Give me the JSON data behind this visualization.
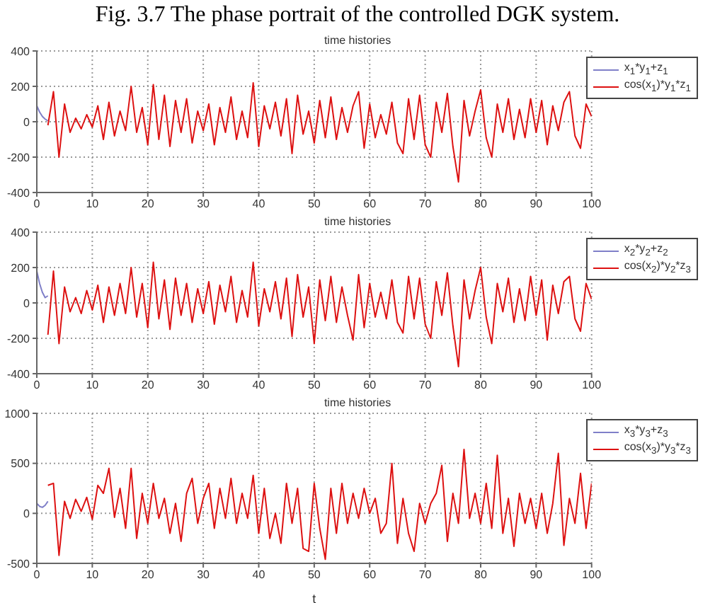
{
  "chart_data": [
    {
      "type": "line",
      "title": "time histories",
      "annotations": [
        "Fig. 3.7 The phase portrait of the controlled DGK system."
      ],
      "xlim": [
        0,
        100
      ],
      "xticks": [
        0,
        10,
        20,
        30,
        40,
        50,
        60,
        70,
        80,
        90,
        100
      ],
      "ylim": [
        -400,
        400
      ],
      "yticks": [
        -400,
        -200,
        0,
        200,
        400
      ],
      "grid": true,
      "legend": "top right",
      "marker": "none",
      "line_style": "solid",
      "series": [
        {
          "name": "x$_{1}$*y$_{1}$+z$_{1}$",
          "color": "#7f7fc8",
          "x": [
            0,
            0.5,
            1,
            1.5,
            2
          ],
          "values": [
            90,
            55,
            30,
            15,
            5
          ]
        },
        {
          "name": "cos(x$_{1}$)*y$_{1}$*z$_{1}$",
          "color": "#dd1111",
          "x": [
            2,
            3,
            4,
            5,
            6,
            7,
            8,
            9,
            10,
            11,
            12,
            13,
            14,
            15,
            16,
            17,
            18,
            19,
            20,
            21,
            22,
            23,
            24,
            25,
            26,
            27,
            28,
            29,
            30,
            31,
            32,
            33,
            34,
            35,
            36,
            37,
            38,
            39,
            40,
            41,
            42,
            43,
            44,
            45,
            46,
            47,
            48,
            49,
            50,
            51,
            52,
            53,
            54,
            55,
            56,
            57,
            58,
            59,
            60,
            61,
            62,
            63,
            64,
            65,
            66,
            67,
            68,
            69,
            70,
            71,
            72,
            73,
            74,
            75,
            76,
            77,
            78,
            79,
            80,
            81,
            82,
            83,
            84,
            85,
            86,
            87,
            88,
            89,
            90,
            91,
            92,
            93,
            94,
            95,
            96,
            97,
            98,
            99,
            100
          ],
          "values": [
            -20,
            170,
            -200,
            100,
            -60,
            20,
            -40,
            40,
            -30,
            90,
            -100,
            110,
            -80,
            60,
            -50,
            200,
            -60,
            80,
            -130,
            210,
            -100,
            150,
            -140,
            120,
            -60,
            130,
            -120,
            60,
            -50,
            100,
            -130,
            80,
            -60,
            140,
            -100,
            60,
            -90,
            220,
            -140,
            90,
            -40,
            110,
            -80,
            130,
            -180,
            150,
            -70,
            60,
            -120,
            120,
            -90,
            140,
            -100,
            80,
            -60,
            90,
            170,
            -150,
            100,
            -90,
            40,
            -70,
            110,
            -120,
            -180,
            130,
            -100,
            150,
            -130,
            -200,
            110,
            -60,
            160,
            -140,
            -340,
            120,
            -80,
            60,
            180,
            -90,
            -200,
            100,
            -60,
            130,
            -100,
            70,
            -90,
            130,
            -60,
            120,
            -130,
            90,
            -50,
            110,
            170,
            -80,
            -150,
            100,
            30
          ]
        }
      ]
    },
    {
      "type": "line",
      "title": "time histories",
      "xlim": [
        0,
        100
      ],
      "xticks": [
        0,
        10,
        20,
        30,
        40,
        50,
        60,
        70,
        80,
        90,
        100
      ],
      "ylim": [
        -400,
        400
      ],
      "yticks": [
        -400,
        -200,
        0,
        200,
        400
      ],
      "grid": true,
      "legend": "top right",
      "marker": "none",
      "line_style": "solid",
      "series": [
        {
          "name": "x$_{2}$*y$_{2}$+z$_{2}$",
          "color": "#7f7fc8",
          "x": [
            0,
            0.5,
            1,
            1.5,
            2
          ],
          "values": [
            180,
            110,
            60,
            30,
            40
          ]
        },
        {
          "name": "cos(x$_{2}$)*y$_{2}$*z$_{3}$",
          "color": "#dd1111",
          "x": [
            2,
            3,
            4,
            5,
            6,
            7,
            8,
            9,
            10,
            11,
            12,
            13,
            14,
            15,
            16,
            17,
            18,
            19,
            20,
            21,
            22,
            23,
            24,
            25,
            26,
            27,
            28,
            29,
            30,
            31,
            32,
            33,
            34,
            35,
            36,
            37,
            38,
            39,
            40,
            41,
            42,
            43,
            44,
            45,
            46,
            47,
            48,
            49,
            50,
            51,
            52,
            53,
            54,
            55,
            56,
            57,
            58,
            59,
            60,
            61,
            62,
            63,
            64,
            65,
            66,
            67,
            68,
            69,
            70,
            71,
            72,
            73,
            74,
            75,
            76,
            77,
            78,
            79,
            80,
            81,
            82,
            83,
            84,
            85,
            86,
            87,
            88,
            89,
            90,
            91,
            92,
            93,
            94,
            95,
            96,
            97,
            98,
            99,
            100
          ],
          "values": [
            -180,
            180,
            -230,
            90,
            -50,
            30,
            -60,
            70,
            -40,
            100,
            -110,
            90,
            -70,
            110,
            -60,
            200,
            -80,
            110,
            -140,
            230,
            -90,
            130,
            -150,
            140,
            -70,
            110,
            -110,
            80,
            -60,
            120,
            -120,
            100,
            -50,
            150,
            -110,
            70,
            -80,
            230,
            -130,
            80,
            -50,
            120,
            -90,
            140,
            -190,
            160,
            -80,
            90,
            -230,
            130,
            -100,
            150,
            -110,
            90,
            -70,
            -210,
            160,
            -140,
            110,
            -80,
            60,
            -90,
            130,
            -110,
            -170,
            150,
            -90,
            140,
            -120,
            -200,
            120,
            -70,
            170,
            -130,
            -360,
            130,
            -90,
            70,
            200,
            -80,
            -230,
            110,
            -50,
            140,
            -110,
            80,
            -100,
            150,
            -70,
            130,
            -210,
            100,
            -60,
            120,
            150,
            -90,
            -160,
            110,
            20
          ]
        }
      ]
    },
    {
      "type": "line",
      "title": "time histories",
      "xlabel": "t",
      "xlim": [
        0,
        100
      ],
      "xticks": [
        0,
        10,
        20,
        30,
        40,
        50,
        60,
        70,
        80,
        90,
        100
      ],
      "ylim": [
        -500,
        1000
      ],
      "yticks": [
        -500,
        0,
        500,
        1000
      ],
      "grid": true,
      "legend": "top right",
      "marker": "none",
      "line_style": "solid",
      "series": [
        {
          "name": "x$_{3}$*y$_{3}$+z$_{3}$",
          "color": "#7f7fc8",
          "x": [
            0,
            0.5,
            1,
            1.5,
            2
          ],
          "values": [
            100,
            70,
            60,
            80,
            120
          ]
        },
        {
          "name": "cos(x$_{3}$)*y$_{3}$*z$_{3}$",
          "color": "#dd1111",
          "x": [
            2,
            3,
            4,
            5,
            6,
            7,
            8,
            9,
            10,
            11,
            12,
            13,
            14,
            15,
            16,
            17,
            18,
            19,
            20,
            21,
            22,
            23,
            24,
            25,
            26,
            27,
            28,
            29,
            30,
            31,
            32,
            33,
            34,
            35,
            36,
            37,
            38,
            39,
            40,
            41,
            42,
            43,
            44,
            45,
            46,
            47,
            48,
            49,
            50,
            51,
            52,
            53,
            54,
            55,
            56,
            57,
            58,
            59,
            60,
            61,
            62,
            63,
            64,
            65,
            66,
            67,
            68,
            69,
            70,
            71,
            72,
            73,
            74,
            75,
            76,
            77,
            78,
            79,
            80,
            81,
            82,
            83,
            84,
            85,
            86,
            87,
            88,
            89,
            90,
            91,
            92,
            93,
            94,
            95,
            96,
            97,
            98,
            99,
            100
          ],
          "values": [
            280,
            300,
            -420,
            120,
            -50,
            140,
            20,
            160,
            -60,
            280,
            200,
            450,
            -40,
            250,
            -150,
            450,
            -250,
            200,
            -100,
            300,
            -50,
            150,
            -200,
            100,
            -280,
            200,
            350,
            -100,
            150,
            300,
            -150,
            250,
            -50,
            350,
            -100,
            200,
            -50,
            380,
            -200,
            250,
            -250,
            0,
            -300,
            300,
            -100,
            250,
            -350,
            -380,
            300,
            -150,
            -460,
            250,
            -200,
            300,
            -100,
            200,
            -50,
            250,
            0,
            150,
            -200,
            -100,
            500,
            -300,
            150,
            -200,
            -380,
            100,
            -100,
            100,
            200,
            480,
            -280,
            200,
            -100,
            640,
            -50,
            200,
            -100,
            300,
            -150,
            580,
            -200,
            150,
            -330,
            200,
            -100,
            150,
            -150,
            200,
            -200,
            100,
            600,
            -320,
            150,
            -100,
            400,
            -150,
            300
          ]
        }
      ]
    }
  ]
}
